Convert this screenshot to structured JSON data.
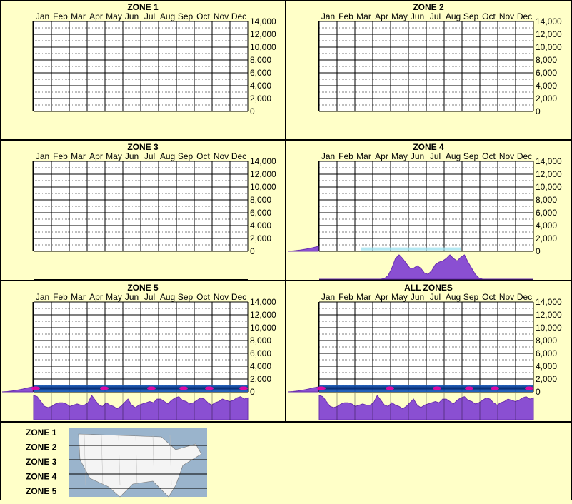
{
  "colors": {
    "background": "#ffffc8",
    "purple_fill": "#8a4fd2",
    "purple_edge": "#6a2fb0",
    "cyan_glow": "#9fe3f0",
    "heat_dark": "#062a6e",
    "heat_mid": "#1a66d0",
    "heat_hot": "#ff00aa"
  },
  "months": [
    "Jan",
    "Feb",
    "Mar",
    "Apr",
    "May",
    "Jun",
    "Jul",
    "Aug",
    "Sep",
    "Oct",
    "Nov",
    "Dec"
  ],
  "y_ticks": [
    "14,000",
    "12,000",
    "10,000",
    "8,000",
    "6,000",
    "4,000",
    "2,000",
    "0"
  ],
  "panels": [
    {
      "title": "ZONE 1",
      "has_data": false
    },
    {
      "title": "ZONE 2",
      "has_data": false
    },
    {
      "title": "ZONE 3",
      "has_data": false
    },
    {
      "title": "ZONE 4",
      "has_data": true
    },
    {
      "title": "ZONE 5",
      "has_data": true
    },
    {
      "title": "ALL ZONES",
      "has_data": true
    }
  ],
  "legend": {
    "zones": [
      "ZONE 1",
      "ZONE 2",
      "ZONE 3",
      "ZONE 4",
      "ZONE 5"
    ],
    "map_icon": "us-map-icon"
  },
  "chart_data": [
    {
      "type": "heatmap",
      "title": "ZONE 1",
      "xlabel": "",
      "ylabel": "",
      "categories": [
        "Jan",
        "Feb",
        "Mar",
        "Apr",
        "May",
        "Jun",
        "Jul",
        "Aug",
        "Sep",
        "Oct",
        "Nov",
        "Dec"
      ],
      "ylim": [
        0,
        14000
      ],
      "grid": true,
      "series": []
    },
    {
      "type": "heatmap",
      "title": "ZONE 2",
      "xlabel": "",
      "ylabel": "",
      "categories": [
        "Jan",
        "Feb",
        "Mar",
        "Apr",
        "May",
        "Jun",
        "Jul",
        "Aug",
        "Sep",
        "Oct",
        "Nov",
        "Dec"
      ],
      "ylim": [
        0,
        14000
      ],
      "grid": true,
      "series": []
    },
    {
      "type": "heatmap",
      "title": "ZONE 3",
      "xlabel": "",
      "ylabel": "",
      "categories": [
        "Jan",
        "Feb",
        "Mar",
        "Apr",
        "May",
        "Jun",
        "Jul",
        "Aug",
        "Sep",
        "Oct",
        "Nov",
        "Dec"
      ],
      "ylim": [
        0,
        14000
      ],
      "grid": true,
      "series": []
    },
    {
      "type": "heatmap",
      "title": "ZONE 4",
      "xlabel": "",
      "ylabel": "",
      "categories": [
        "Jan",
        "Feb",
        "Mar",
        "Apr",
        "May",
        "Jun",
        "Jul",
        "Aug",
        "Sep",
        "Oct",
        "Nov",
        "Dec"
      ],
      "ylim": [
        0,
        14000
      ],
      "grid": true,
      "time_profile": [
        0,
        0,
        0,
        0,
        0,
        0,
        0,
        0,
        0,
        0,
        0,
        0,
        0,
        0,
        0,
        0,
        0,
        0,
        3,
        15,
        45,
        85,
        100,
        85,
        65,
        45,
        45,
        55,
        45,
        25,
        20,
        35,
        60,
        70,
        75,
        85,
        100,
        85,
        75,
        90,
        100,
        70,
        45,
        20,
        5,
        0,
        0,
        0,
        0,
        0,
        0,
        0,
        0,
        0,
        0,
        0,
        0,
        0,
        0,
        0
      ],
      "elevation_profile": [
        0,
        0.1,
        0.25,
        0.45,
        0.7,
        1.0
      ]
    },
    {
      "type": "heatmap",
      "title": "ZONE 5",
      "xlabel": "",
      "ylabel": "",
      "categories": [
        "Jan",
        "Feb",
        "Mar",
        "Apr",
        "May",
        "Jun",
        "Jul",
        "Aug",
        "Sep",
        "Oct",
        "Nov",
        "Dec"
      ],
      "ylim": [
        0,
        14000
      ],
      "grid": true,
      "time_profile": [
        100,
        95,
        75,
        55,
        50,
        55,
        65,
        70,
        70,
        65,
        55,
        60,
        65,
        60,
        60,
        70,
        100,
        80,
        60,
        55,
        70,
        60,
        55,
        45,
        55,
        70,
        85,
        60,
        50,
        60,
        65,
        70,
        75,
        70,
        85,
        85,
        75,
        65,
        80,
        90,
        95,
        80,
        75,
        65,
        70,
        80,
        90,
        85,
        70,
        60,
        70,
        75,
        85,
        80,
        75,
        80,
        90,
        95,
        85,
        90
      ],
      "elevation_profile": [
        0,
        0.08,
        0.2,
        0.35,
        0.55,
        0.8,
        1.0
      ]
    },
    {
      "type": "heatmap",
      "title": "ALL ZONES",
      "xlabel": "",
      "ylabel": "",
      "categories": [
        "Jan",
        "Feb",
        "Mar",
        "Apr",
        "May",
        "Jun",
        "Jul",
        "Aug",
        "Sep",
        "Oct",
        "Nov",
        "Dec"
      ],
      "ylim": [
        0,
        14000
      ],
      "grid": true,
      "time_profile": [
        100,
        95,
        75,
        55,
        50,
        55,
        65,
        70,
        70,
        65,
        55,
        60,
        65,
        60,
        60,
        70,
        100,
        80,
        60,
        55,
        70,
        60,
        55,
        45,
        55,
        70,
        85,
        60,
        50,
        60,
        65,
        70,
        75,
        70,
        85,
        85,
        75,
        65,
        80,
        90,
        95,
        80,
        75,
        65,
        70,
        80,
        90,
        85,
        70,
        60,
        70,
        75,
        85,
        80,
        75,
        80,
        90,
        95,
        85,
        90
      ],
      "elevation_profile": [
        0,
        0.08,
        0.2,
        0.35,
        0.55,
        0.8,
        1.0
      ]
    }
  ]
}
